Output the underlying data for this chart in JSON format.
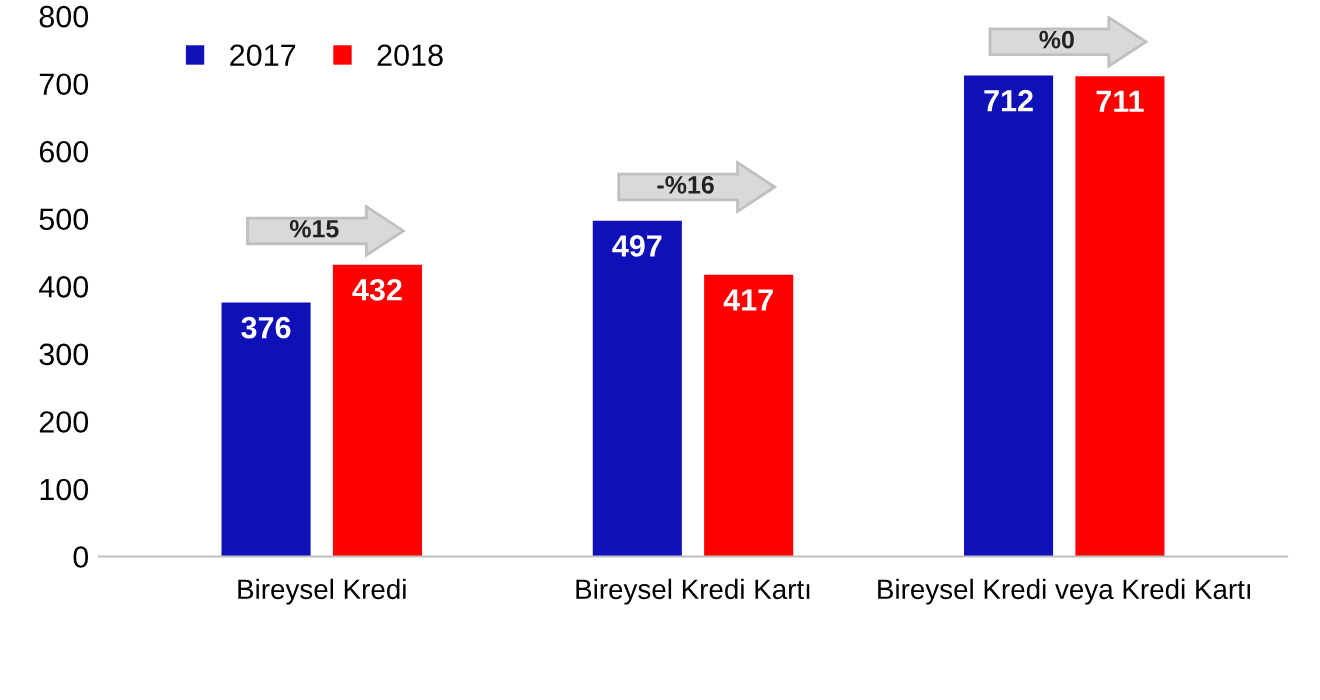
{
  "chart_data": {
    "type": "bar",
    "categories": [
      "Bireysel Kredi",
      "Bireysel Kredi Kartı",
      "Bireysel Kredi veya Kredi Kartı"
    ],
    "series": [
      {
        "name": "2017",
        "color": "#1010b8",
        "values": [
          376,
          497,
          712
        ]
      },
      {
        "name": "2018",
        "color": "#ff0000",
        "values": [
          432,
          417,
          711
        ]
      }
    ],
    "ylim": [
      0,
      800
    ],
    "yticks": [
      0,
      100,
      200,
      300,
      400,
      500,
      600,
      700,
      800
    ],
    "data_labels": true,
    "legend": "top left",
    "grid": false,
    "annotations": [
      "%15",
      "-%16",
      "%0"
    ]
  }
}
